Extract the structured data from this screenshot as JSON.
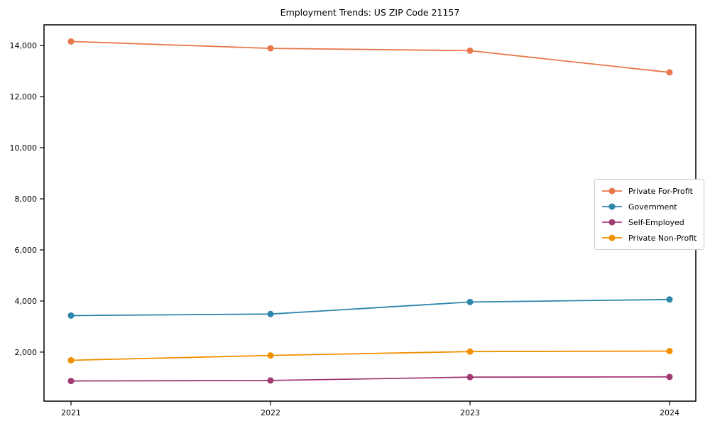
{
  "chart_data": {
    "type": "line",
    "title": "Employment Trends: US ZIP Code 21157",
    "x": [
      "2021",
      "2022",
      "2023",
      "2024"
    ],
    "series": [
      {
        "name": "Private For-Profit",
        "color": "#E8784B",
        "values": [
          14160,
          13890,
          13800,
          12950
        ]
      },
      {
        "name": "Government",
        "color": "#2E86AB",
        "values": [
          3430,
          3490,
          3960,
          4060
        ]
      },
      {
        "name": "Self-Employed",
        "color": "#A23B72",
        "values": [
          870,
          890,
          1020,
          1030
        ]
      },
      {
        "name": "Private Non-Profit",
        "color": "#F18F01",
        "values": [
          1680,
          1870,
          2020,
          2040
        ]
      }
    ],
    "xlabel": "",
    "ylabel": "",
    "ylim": [
      80,
      14810
    ],
    "yticks": [
      2000,
      4000,
      6000,
      8000,
      10000,
      12000,
      14000
    ],
    "ytick_labels": [
      "2,000",
      "4,000",
      "6,000",
      "8,000",
      "10,000",
      "12,000",
      "14,000"
    ],
    "grid": false,
    "legend_position": "center-right",
    "axis_color": "#000000",
    "background_color": "#ffffff",
    "marker": "circle"
  }
}
